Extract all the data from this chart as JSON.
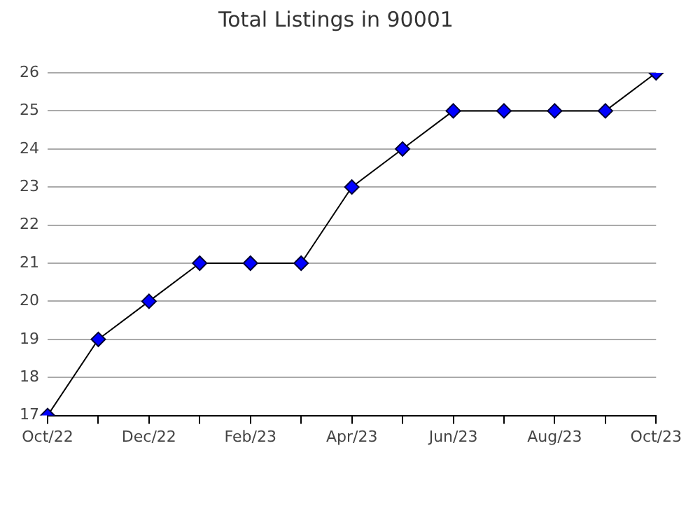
{
  "chart_data": {
    "type": "line",
    "title": "Total Listings in 90001",
    "categories": [
      "Oct/22",
      null,
      "Dec/22",
      null,
      "Feb/23",
      null,
      "Apr/23",
      null,
      "Jun/23",
      null,
      "Aug/23",
      null,
      "Oct/23"
    ],
    "series": [
      {
        "color": "#0000ff",
        "values": [
          17,
          19,
          20,
          21,
          21,
          21,
          23,
          24,
          25,
          25,
          25,
          25,
          26
        ]
      }
    ],
    "ylim": [
      17,
      26
    ],
    "yticks": [
      17,
      18,
      19,
      20,
      21,
      22,
      23,
      24,
      25,
      26
    ],
    "grid": "y",
    "legend": false,
    "marker": "diamond",
    "line_style": "solid"
  }
}
